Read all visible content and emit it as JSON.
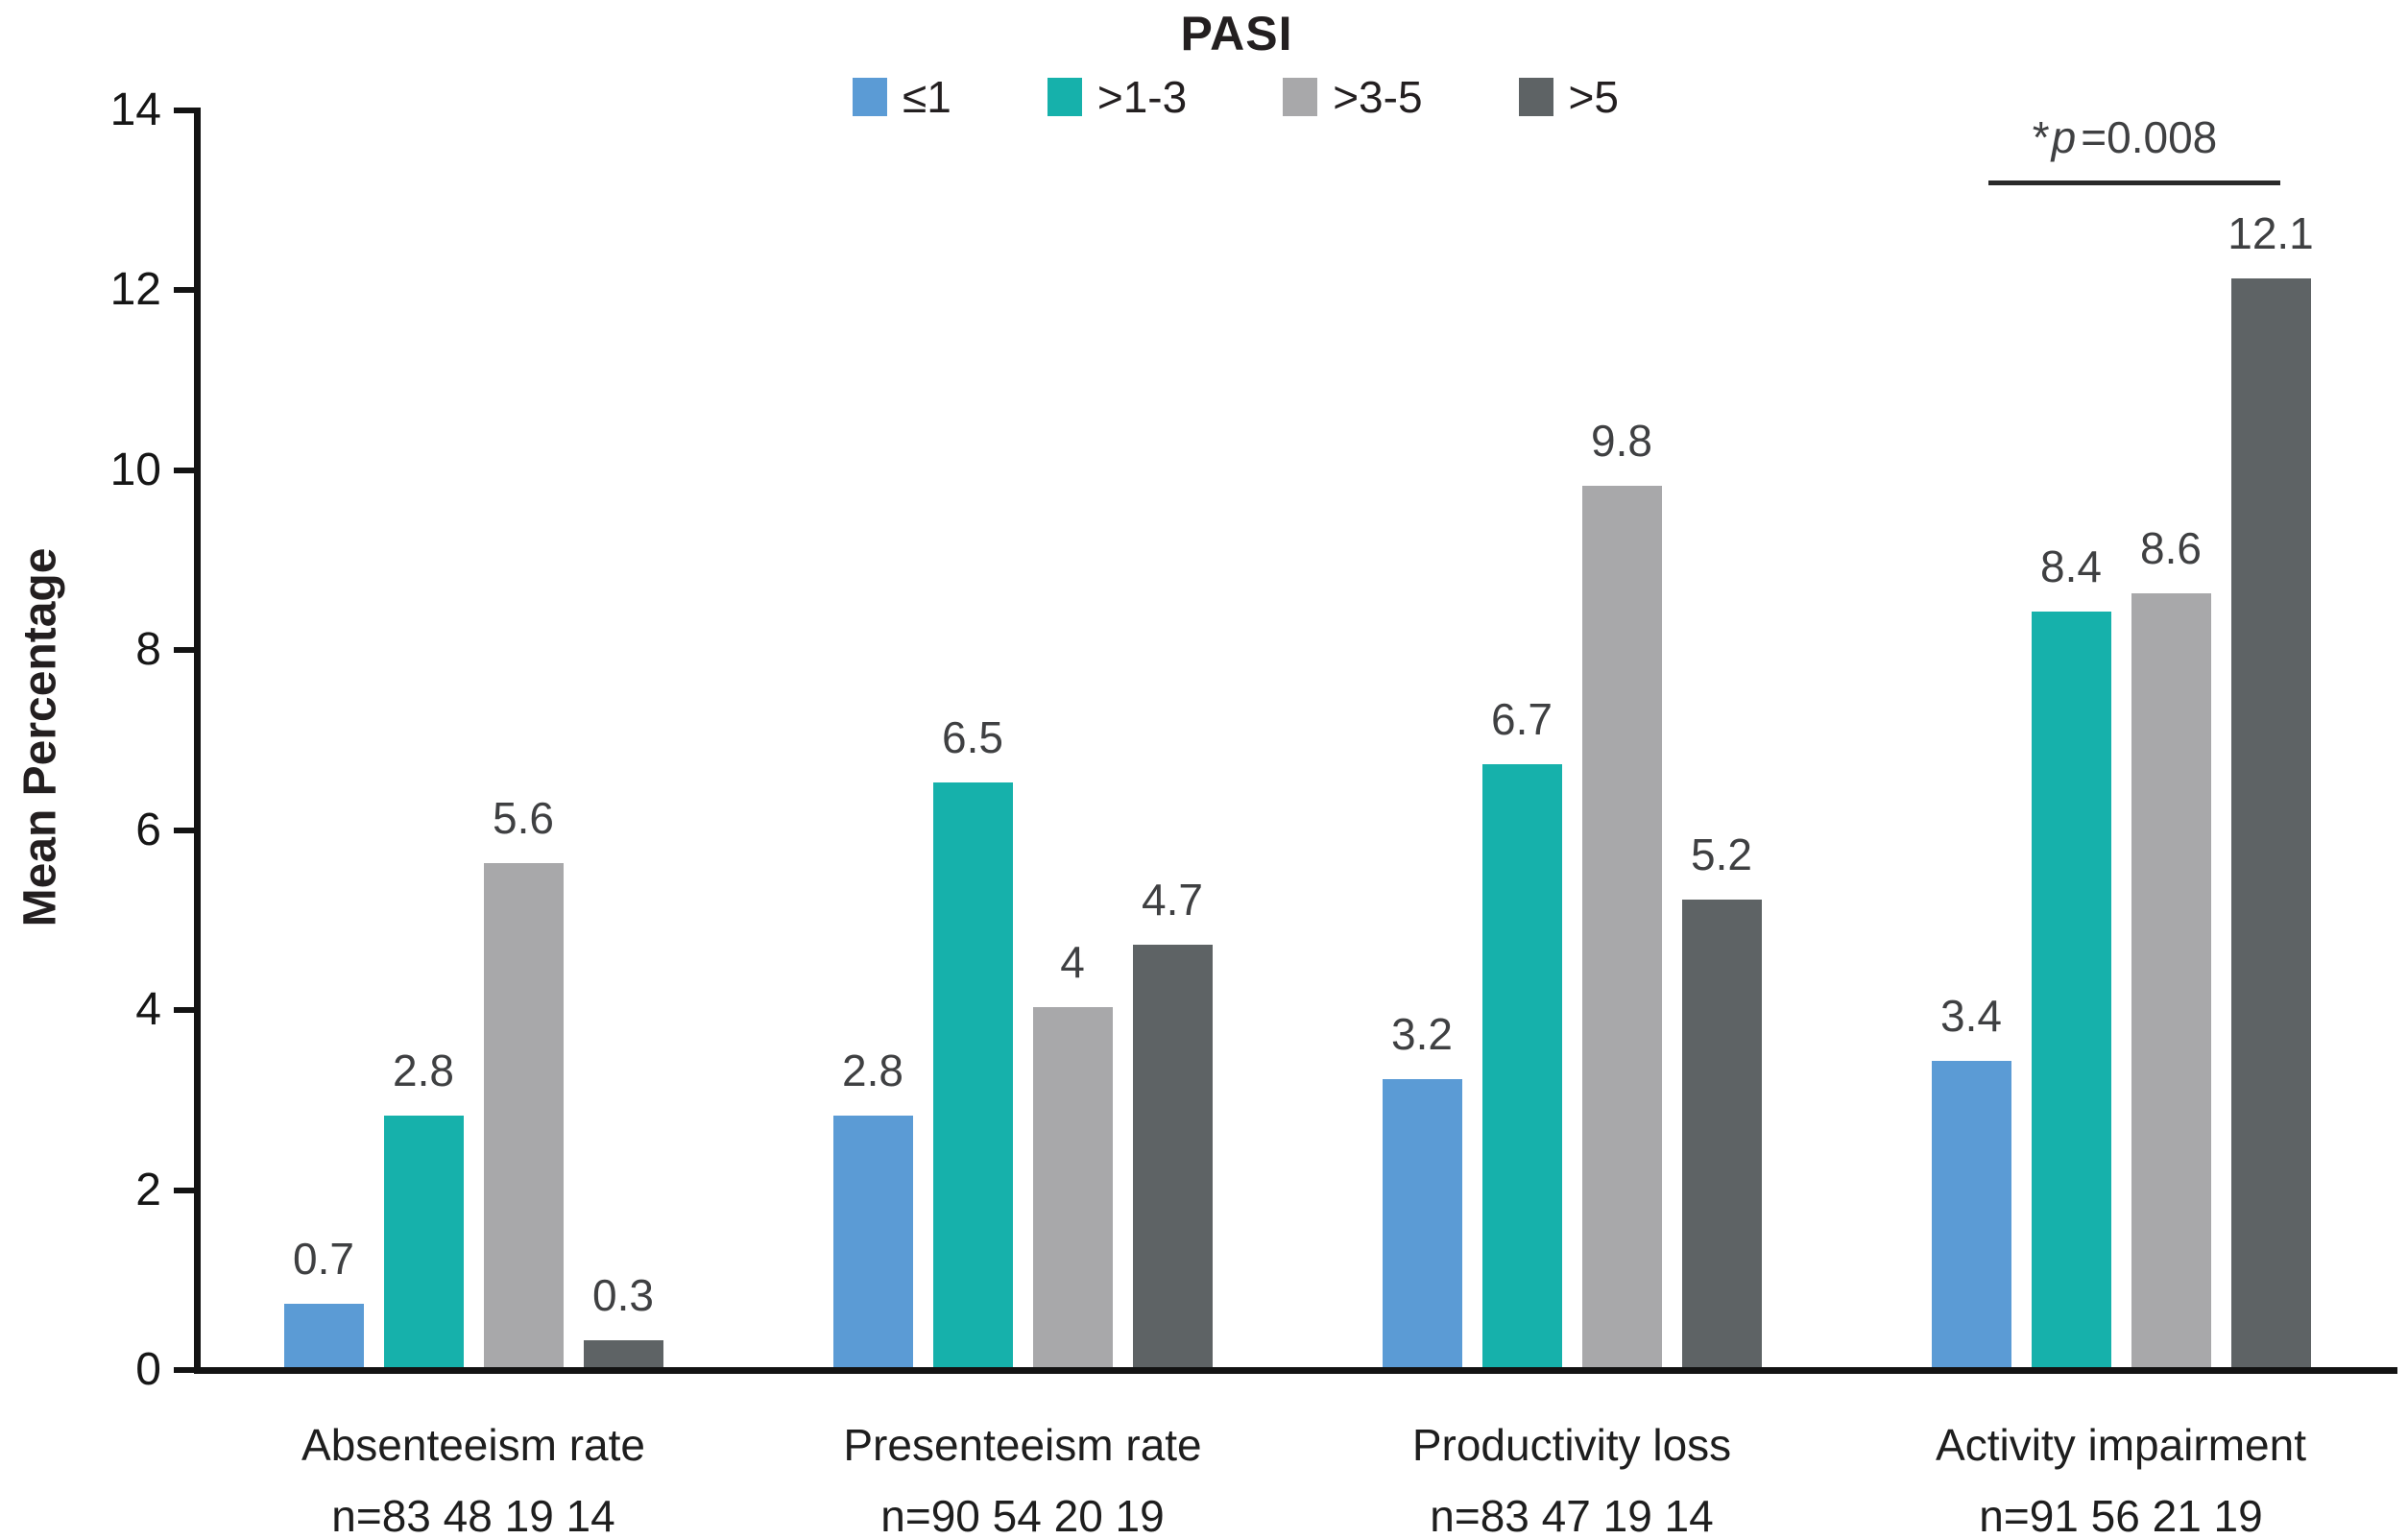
{
  "figure": {
    "title": "PASI"
  },
  "y_axis": {
    "label": "Mean Percentage",
    "min": 0,
    "max": 14
  },
  "legend": {
    "items": [
      {
        "label": "≤1",
        "color": "#5B9BD5"
      },
      {
        "label": ">1-3",
        "color": "#16B1AB"
      },
      {
        "label": ">3-5",
        "color": "#A8A8AA"
      },
      {
        "label": ">5",
        "color": "#5E6365"
      }
    ]
  },
  "annotation": {
    "star": "*",
    "p_symbol": "p",
    "value_part": "=0.008"
  },
  "chart_data": {
    "type": "bar",
    "title": "PASI",
    "xlabel": "",
    "ylabel": "Mean Percentage",
    "ylim": [
      0,
      14
    ],
    "yticks": [
      0,
      2,
      4,
      6,
      8,
      10,
      12,
      14
    ],
    "grid": false,
    "legend_position": "top-center",
    "legend_title": "PASI",
    "categories": [
      "Absenteeism rate",
      "Presenteeism rate",
      "Productivity loss",
      "Activity impairment"
    ],
    "category_n_labels": [
      "n=83 48 19 14",
      "n=90 54 20 19",
      "n=83 47 19 14",
      "n=91 56 21 19"
    ],
    "series": [
      {
        "name": "≤1",
        "color": "#5B9BD5",
        "values": [
          0.7,
          2.8,
          3.2,
          3.4
        ],
        "value_labels": [
          "0.7",
          "2.8",
          "3.2",
          "3.4"
        ]
      },
      {
        "name": ">1-3",
        "color": "#16B1AB",
        "values": [
          2.8,
          6.5,
          6.7,
          8.4
        ],
        "value_labels": [
          "2.8",
          "6.5",
          "6.7",
          "8.4"
        ]
      },
      {
        "name": ">3-5",
        "color": "#A8A8AA",
        "values": [
          5.6,
          4,
          9.8,
          8.6
        ],
        "value_labels": [
          "5.6",
          "4",
          "9.8",
          "8.6"
        ]
      },
      {
        "name": ">5",
        "color": "#5E6365",
        "values": [
          0.3,
          4.7,
          5.2,
          12.1
        ],
        "value_labels": [
          "0.3",
          "4.7",
          "5.2",
          "12.1"
        ]
      }
    ],
    "annotation": {
      "text": "*p=0.008",
      "applies_to_category": "Activity impairment"
    }
  }
}
